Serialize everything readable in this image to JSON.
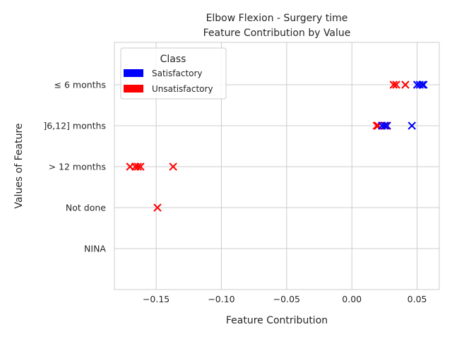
{
  "chart_data": {
    "type": "scatter",
    "title": "Elbow Flexion - Surgery time",
    "subtitle": "Feature Contribution by Value",
    "xlabel": "Feature Contribution",
    "ylabel": "Values of Feature",
    "xlim": [
      -0.182,
      0.067
    ],
    "x_ticks": [
      -0.15,
      -0.1,
      -0.05,
      0.0,
      0.05
    ],
    "x_tick_labels": [
      "−0.15",
      "−0.10",
      "−0.05",
      "0.00",
      "0.05"
    ],
    "categories": [
      "≤ 6 months",
      "]6,12] months",
      "> 12 months",
      "Not done",
      "NINA"
    ],
    "grid": true,
    "marker": "x",
    "legend": {
      "title": "Class",
      "placement": "top-left",
      "entries": [
        {
          "label": "Satisfactory",
          "color": "#0000ff"
        },
        {
          "label": "Unsatisfactory",
          "color": "#ff0000"
        }
      ]
    },
    "series": [
      {
        "name": "Unsatisfactory",
        "color": "#ff0000",
        "points": [
          {
            "x": 0.032,
            "y": "≤ 6 months"
          },
          {
            "x": 0.034,
            "y": "≤ 6 months"
          },
          {
            "x": 0.041,
            "y": "≤ 6 months"
          },
          {
            "x": 0.019,
            "y": "]6,12] months"
          },
          {
            "x": 0.02,
            "y": "]6,12] months"
          },
          {
            "x": 0.026,
            "y": "]6,12] months"
          },
          {
            "x": -0.17,
            "y": "> 12 months"
          },
          {
            "x": -0.166,
            "y": "> 12 months"
          },
          {
            "x": -0.164,
            "y": "> 12 months"
          },
          {
            "x": -0.162,
            "y": "> 12 months"
          },
          {
            "x": -0.137,
            "y": "> 12 months"
          },
          {
            "x": -0.149,
            "y": "Not done"
          }
        ]
      },
      {
        "name": "Satisfactory",
        "color": "#0000ff",
        "points": [
          {
            "x": 0.05,
            "y": "≤ 6 months"
          },
          {
            "x": 0.052,
            "y": "≤ 6 months"
          },
          {
            "x": 0.054,
            "y": "≤ 6 months"
          },
          {
            "x": 0.055,
            "y": "≤ 6 months"
          },
          {
            "x": 0.023,
            "y": "]6,12] months"
          },
          {
            "x": 0.025,
            "y": "]6,12] months"
          },
          {
            "x": 0.027,
            "y": "]6,12] months"
          },
          {
            "x": 0.046,
            "y": "]6,12] months"
          }
        ]
      }
    ]
  }
}
